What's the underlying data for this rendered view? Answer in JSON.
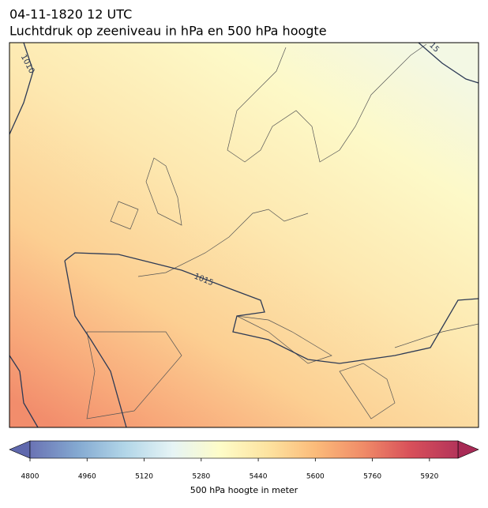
{
  "header": {
    "line1": "04-11-1820 12 UTC",
    "line2": "Luchtdruk op zeeniveau in hPa en 500 hPa hoogte"
  },
  "map": {
    "isobar_labels": [
      "1010",
      "1015",
      "15"
    ]
  },
  "colorbar": {
    "label": "500 hPa hoogte in meter",
    "lim": [
      4800,
      6000
    ],
    "ticks": [
      4800,
      4960,
      5120,
      5280,
      5440,
      5600,
      5760,
      5920
    ],
    "colormap": [
      "#6a73b4",
      "#84a9d1",
      "#b2d6e8",
      "#e6f4f5",
      "#fefcc8",
      "#fde3a0",
      "#fbbb7a",
      "#f08c68",
      "#d8505a",
      "#b4345a"
    ]
  }
}
